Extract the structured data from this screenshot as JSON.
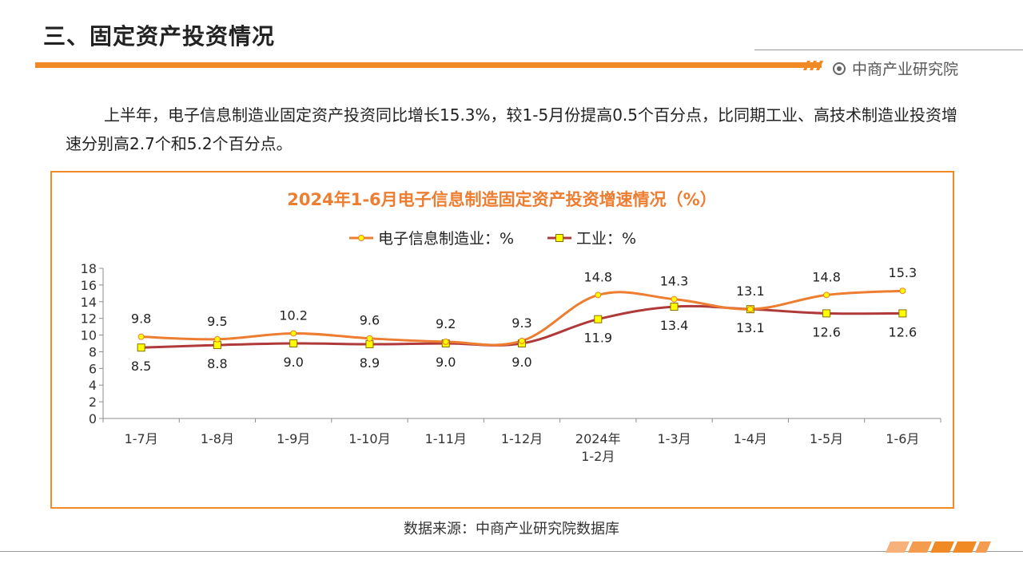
{
  "header": {
    "title": "三、固定资产投资情况",
    "brand": "中商产业研究院"
  },
  "paragraph": "上半年，电子信息制造业固定资产投资同比增长15.3%，较1-5月份提高0.5个百分点，比同期工业、高技术制造业投资增速分别高2.7个和5.2个百分点。",
  "source": "数据来源：中商产业研究院数据库",
  "colors": {
    "accent": "#f08a24",
    "series1": "#ed7d31",
    "series2": "#b03a3a",
    "marker": "#ffff00"
  },
  "chart_data": {
    "type": "line",
    "title": "2024年1-6月电子信息制造固定资产投资增速情况（%）",
    "categories": [
      "1-7月",
      "1-8月",
      "1-9月",
      "1-10月",
      "1-11月",
      "1-12月",
      "2024年\n1-2月",
      "1-3月",
      "1-4月",
      "1-5月",
      "1-6月"
    ],
    "series": [
      {
        "name": "电子信息制造业：%",
        "values": [
          9.8,
          9.5,
          10.2,
          9.6,
          9.2,
          9.3,
          14.8,
          14.3,
          13.1,
          14.8,
          15.3
        ],
        "marker": "circle"
      },
      {
        "name": "工业：%",
        "values": [
          8.5,
          8.8,
          9.0,
          8.9,
          9.0,
          9.0,
          11.9,
          13.4,
          13.1,
          12.6,
          12.6
        ],
        "marker": "square"
      }
    ],
    "ylim": [
      0,
      18
    ],
    "yticks": [
      0,
      2,
      4,
      6,
      8,
      10,
      12,
      14,
      16,
      18
    ],
    "legend": "top-center",
    "grid": false
  }
}
